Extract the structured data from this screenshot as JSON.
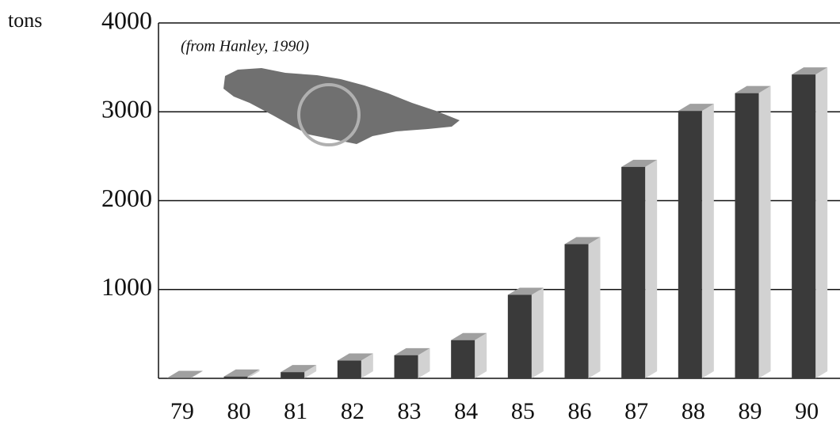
{
  "chart_data": {
    "type": "bar3d",
    "y_label": "tons",
    "annotation": "(from Hanley, 1990)",
    "categories": [
      "79",
      "80",
      "81",
      "82",
      "83",
      "84",
      "85",
      "86",
      "87",
      "88",
      "89",
      "90"
    ],
    "values": [
      5,
      20,
      70,
      200,
      260,
      430,
      940,
      1510,
      2380,
      3010,
      3210,
      3420
    ],
    "color": "#3a3a3a",
    "ylim": [
      0,
      4000
    ],
    "yticks": [
      1000,
      2000,
      3000,
      4000
    ],
    "grid": true
  }
}
